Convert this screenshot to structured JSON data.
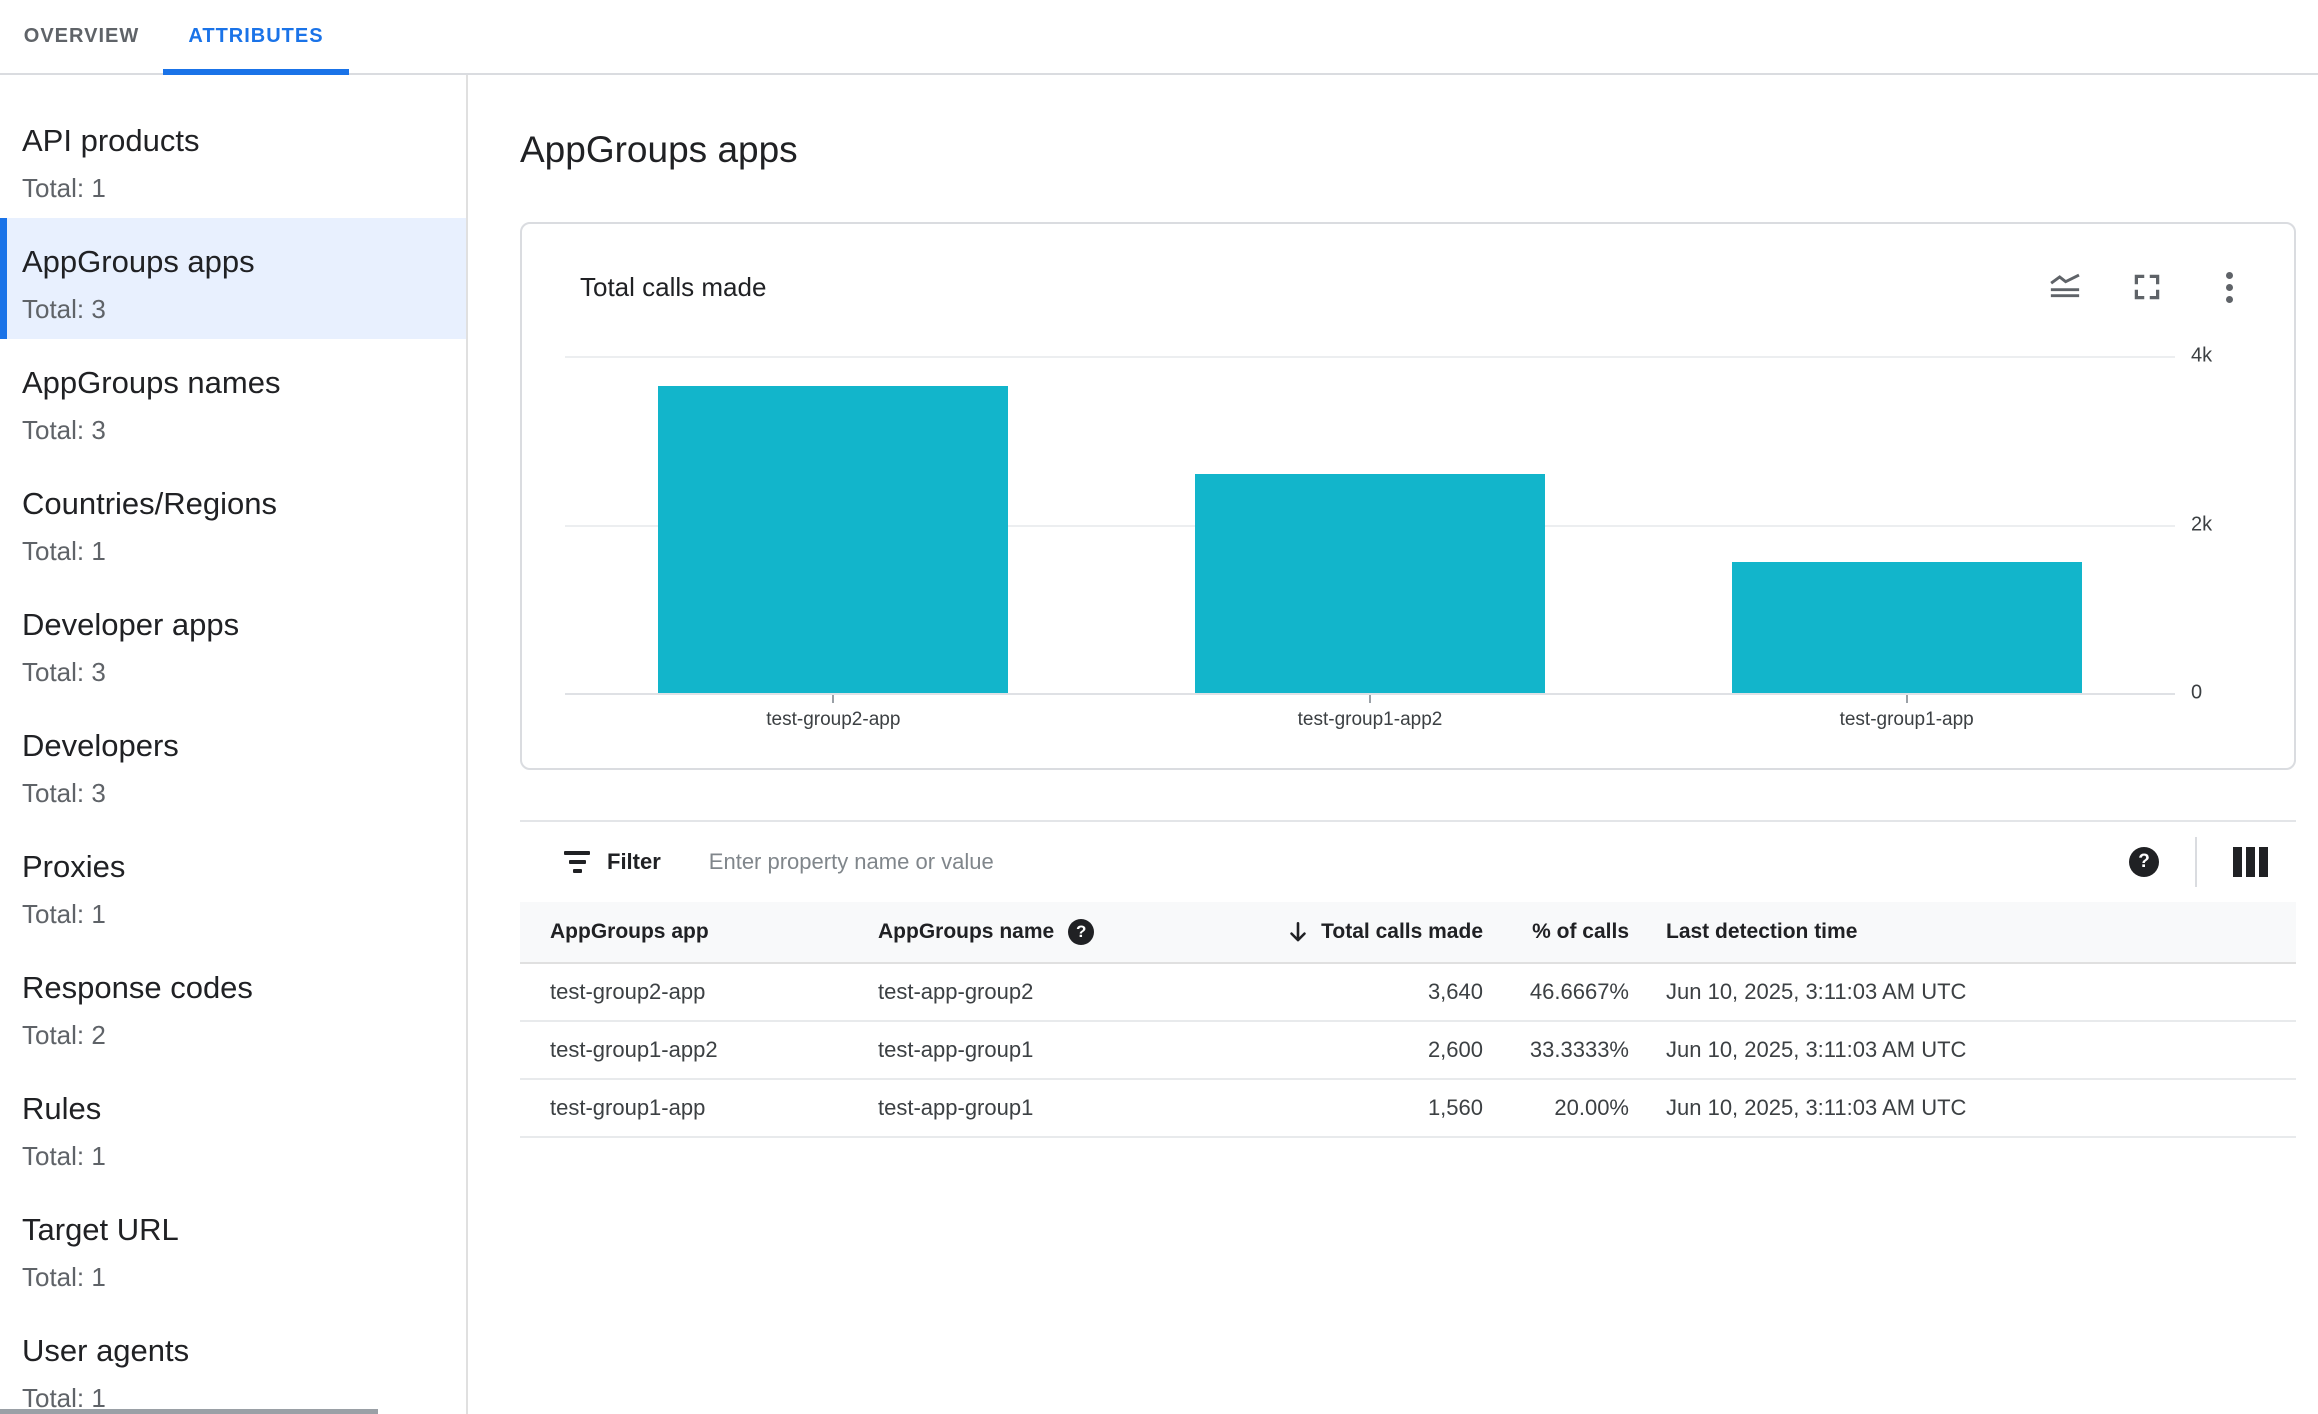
{
  "tabs": {
    "overview": "OVERVIEW",
    "attributes": "ATTRIBUTES"
  },
  "sidebar": {
    "items": [
      {
        "label": "API products",
        "total": "Total: 1",
        "selected": false
      },
      {
        "label": "AppGroups apps",
        "total": "Total: 3",
        "selected": true
      },
      {
        "label": "AppGroups names",
        "total": "Total: 3",
        "selected": false
      },
      {
        "label": "Countries/Regions",
        "total": "Total: 1",
        "selected": false
      },
      {
        "label": "Developer apps",
        "total": "Total: 3",
        "selected": false
      },
      {
        "label": "Developers",
        "total": "Total: 3",
        "selected": false
      },
      {
        "label": "Proxies",
        "total": "Total: 1",
        "selected": false
      },
      {
        "label": "Response codes",
        "total": "Total: 2",
        "selected": false
      },
      {
        "label": "Rules",
        "total": "Total: 1",
        "selected": false
      },
      {
        "label": "Target URL",
        "total": "Total: 1",
        "selected": false
      },
      {
        "label": "User agents",
        "total": "Total: 1",
        "selected": false
      }
    ]
  },
  "page": {
    "title": "AppGroups apps"
  },
  "chart_card": {
    "title": "Total calls made",
    "icons": [
      "chart-type-icon",
      "fullscreen-icon",
      "more-vert-icon"
    ]
  },
  "chart_data": {
    "type": "bar",
    "title": "Total calls made",
    "categories": [
      "test-group2-app",
      "test-group1-app2",
      "test-group1-app"
    ],
    "values": [
      3640,
      2600,
      1560
    ],
    "xlabel": "",
    "ylabel": "",
    "ylim": [
      0,
      4000
    ],
    "y_ticks": [
      "4k",
      "2k",
      "0"
    ],
    "grid": "horizontal",
    "legend": "none",
    "bar_color": "#12b5cb"
  },
  "filter": {
    "label": "Filter",
    "placeholder": "Enter property name or value"
  },
  "table": {
    "columns": [
      "AppGroups app",
      "AppGroups name",
      "Total calls made",
      "% of calls",
      "Last detection time"
    ],
    "sorted_column": "Total calls made",
    "sort_direction": "descending",
    "rows": [
      [
        "test-group2-app",
        "test-app-group2",
        "3,640",
        "46.6667%",
        "Jun 10, 2025, 3:11:03 AM UTC"
      ],
      [
        "test-group1-app2",
        "test-app-group1",
        "2,600",
        "33.3333%",
        "Jun 10, 2025, 3:11:03 AM UTC"
      ],
      [
        "test-group1-app",
        "test-app-group1",
        "1,560",
        "20.00%",
        "Jun 10, 2025, 3:11:03 AM UTC"
      ]
    ]
  },
  "colors": {
    "accent_blue": "#1a73e8",
    "bar_teal": "#12b5cb",
    "selected_bg": "#e8f0fe"
  }
}
